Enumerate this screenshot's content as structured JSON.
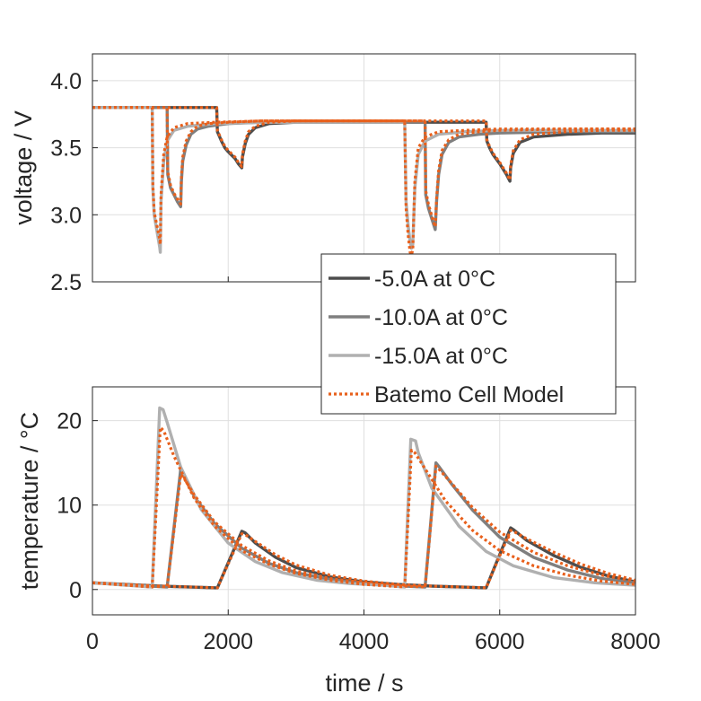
{
  "chart_data": [
    {
      "type": "line",
      "panel": "top",
      "ylabel": "voltage / V",
      "xlim": [
        0,
        8000
      ],
      "ylim": [
        2.5,
        4.2
      ],
      "yticks": [
        2.5,
        3.0,
        3.5,
        4.0
      ],
      "ytick_labels": [
        "2.5",
        "3.0",
        "3.5",
        "4.0"
      ],
      "grid": true,
      "legend": "bottom-right",
      "series": [
        {
          "name": "-5.0A at 0°C",
          "color": "#4d4d4d",
          "style": "solid",
          "x": [
            0,
            1830,
            1840,
            1900,
            1950,
            2000,
            2100,
            2150,
            2200,
            2210,
            2250,
            2300,
            2400,
            2600,
            3000,
            3500,
            4000,
            4500,
            5000,
            5500,
            5800,
            5810,
            5850,
            5900,
            6000,
            6100,
            6150,
            6160,
            6200,
            6300,
            6500,
            7000,
            7500,
            8000
          ],
          "y": [
            3.8,
            3.8,
            3.62,
            3.55,
            3.5,
            3.47,
            3.42,
            3.38,
            3.35,
            3.43,
            3.53,
            3.6,
            3.65,
            3.68,
            3.69,
            3.69,
            3.69,
            3.69,
            3.69,
            3.69,
            3.69,
            3.55,
            3.5,
            3.45,
            3.38,
            3.3,
            3.25,
            3.35,
            3.46,
            3.54,
            3.58,
            3.6,
            3.61,
            3.61
          ]
        },
        {
          "name": "-10.0A at 0°C",
          "color": "#7f7f7f",
          "style": "solid",
          "x": [
            0,
            1100,
            1110,
            1150,
            1200,
            1250,
            1300,
            1310,
            1330,
            1380,
            1450,
            1550,
            1700,
            2000,
            2500,
            3000,
            4000,
            4600,
            4900,
            4910,
            4950,
            5000,
            5050,
            5070,
            5100,
            5150,
            5250,
            5400,
            5700,
            6000,
            7000,
            8000
          ],
          "y": [
            3.8,
            3.8,
            3.3,
            3.2,
            3.15,
            3.1,
            3.06,
            3.25,
            3.4,
            3.52,
            3.6,
            3.64,
            3.66,
            3.68,
            3.69,
            3.69,
            3.69,
            3.69,
            3.69,
            3.15,
            3.05,
            2.97,
            2.89,
            3.1,
            3.3,
            3.45,
            3.54,
            3.58,
            3.6,
            3.61,
            3.62,
            3.62
          ]
        },
        {
          "name": "-15.0A at 0°C",
          "color": "#b0b0b0",
          "style": "solid",
          "x": [
            0,
            880,
            890,
            910,
            950,
            990,
            1000,
            1010,
            1050,
            1100,
            1200,
            1400,
            1800,
            2500,
            4000,
            4600,
            4620,
            4650,
            4680,
            4700,
            4720,
            4750,
            4800,
            4900,
            5100,
            5500,
            6000,
            7000,
            8000
          ],
          "y": [
            3.8,
            3.8,
            3.2,
            3.0,
            2.88,
            2.76,
            2.72,
            3.1,
            3.4,
            3.55,
            3.63,
            3.66,
            3.68,
            3.69,
            3.69,
            3.69,
            3.1,
            2.92,
            2.8,
            2.75,
            2.78,
            3.2,
            3.45,
            3.55,
            3.6,
            3.62,
            3.63,
            3.63,
            3.63
          ]
        },
        {
          "name": "Batemo Cell Model",
          "color": "#e8601c",
          "style": "dotted",
          "x": [
            0,
            880,
            890,
            910,
            950,
            990,
            1000,
            1010,
            1050,
            1100,
            1200,
            1400,
            1800,
            2500,
            4000,
            4600,
            4620,
            4650,
            4680,
            4700,
            4720,
            4750,
            4800,
            4900,
            5100,
            5500,
            6000,
            7000,
            8000
          ],
          "y": [
            3.8,
            3.8,
            3.22,
            3.02,
            2.92,
            2.82,
            2.78,
            3.15,
            3.45,
            3.58,
            3.65,
            3.68,
            3.69,
            3.7,
            3.7,
            3.7,
            3.05,
            2.85,
            2.72,
            2.7,
            2.74,
            3.25,
            3.5,
            3.58,
            3.62,
            3.63,
            3.64,
            3.64,
            3.64
          ]
        },
        {
          "name": "Batemo Cell Model",
          "color": "#e8601c",
          "style": "dotted",
          "x": [
            0,
            1100,
            1110,
            1150,
            1200,
            1250,
            1300,
            1310,
            1330,
            1380,
            1450,
            1550,
            1700,
            2000,
            2500,
            3000,
            4000,
            4600,
            4900,
            4910,
            4950,
            5000,
            5050,
            5070,
            5100,
            5150,
            5250,
            5400,
            5700,
            6000,
            7000,
            8000
          ],
          "y": [
            3.8,
            3.8,
            3.32,
            3.22,
            3.16,
            3.12,
            3.08,
            3.28,
            3.43,
            3.55,
            3.62,
            3.66,
            3.68,
            3.69,
            3.7,
            3.7,
            3.7,
            3.7,
            3.7,
            3.18,
            3.08,
            2.99,
            2.91,
            3.12,
            3.33,
            3.48,
            3.56,
            3.6,
            3.62,
            3.63,
            3.64,
            3.64
          ]
        },
        {
          "name": "Batemo Cell Model",
          "color": "#e8601c",
          "style": "dotted",
          "x": [
            0,
            1830,
            1840,
            1900,
            1950,
            2000,
            2100,
            2150,
            2200,
            2210,
            2250,
            2300,
            2400,
            2600,
            3000,
            3500,
            4000,
            4500,
            5000,
            5500,
            5800,
            5810,
            5850,
            5900,
            6000,
            6100,
            6150,
            6160,
            6200,
            6300,
            6500,
            7000,
            7500,
            8000
          ],
          "y": [
            3.8,
            3.8,
            3.63,
            3.56,
            3.51,
            3.48,
            3.43,
            3.39,
            3.36,
            3.45,
            3.55,
            3.62,
            3.66,
            3.69,
            3.7,
            3.7,
            3.7,
            3.7,
            3.7,
            3.7,
            3.7,
            3.56,
            3.51,
            3.46,
            3.39,
            3.31,
            3.26,
            3.37,
            3.48,
            3.56,
            3.6,
            3.62,
            3.63,
            3.63
          ]
        }
      ]
    },
    {
      "type": "line",
      "panel": "bottom",
      "xlabel": "time / s",
      "ylabel": "temperature / °C",
      "xlim": [
        0,
        8000
      ],
      "ylim": [
        -3,
        24
      ],
      "xticks": [
        0,
        2000,
        4000,
        6000,
        8000
      ],
      "xtick_labels": [
        "0",
        "2000",
        "4000",
        "6000",
        "8000"
      ],
      "yticks": [
        0,
        10,
        20
      ],
      "ytick_labels": [
        "0",
        "10",
        "20"
      ],
      "grid": true,
      "series": [
        {
          "name": "-5.0A at 0°C",
          "color": "#4d4d4d",
          "style": "solid",
          "x": [
            0,
            1000,
            1840,
            2200,
            2250,
            2400,
            2700,
            3000,
            3500,
            4000,
            4500,
            5000,
            5800,
            6160,
            6200,
            6400,
            6800,
            7200,
            7600,
            8000
          ],
          "y": [
            0.8,
            0.4,
            0.2,
            6.9,
            6.7,
            5.5,
            3.8,
            2.6,
            1.5,
            0.9,
            0.6,
            0.4,
            0.2,
            7.3,
            7.1,
            5.8,
            4.0,
            2.6,
            1.6,
            0.9
          ]
        },
        {
          "name": "-10.0A at 0°C",
          "color": "#7f7f7f",
          "style": "solid",
          "x": [
            0,
            1100,
            1300,
            1330,
            1500,
            1800,
            2200,
            2600,
            3000,
            3500,
            4000,
            4600,
            4900,
            5060,
            5100,
            5300,
            5600,
            6000,
            6500,
            7000,
            7500,
            8000
          ],
          "y": [
            0.8,
            0.3,
            14.2,
            13.8,
            11.0,
            7.8,
            4.9,
            3.1,
            2.0,
            1.2,
            0.7,
            0.4,
            0.3,
            15.0,
            14.6,
            12.4,
            9.4,
            6.2,
            3.8,
            2.3,
            1.3,
            0.8
          ]
        },
        {
          "name": "-15.0A at 0°C",
          "color": "#b0b0b0",
          "style": "solid",
          "x": [
            0,
            880,
            990,
            1040,
            1100,
            1300,
            1600,
            2000,
            2400,
            2800,
            3300,
            3800,
            4300,
            4600,
            4690,
            4760,
            4800,
            5000,
            5400,
            5800,
            6200,
            6800,
            7400,
            8000
          ],
          "y": [
            0.8,
            0.3,
            21.5,
            21.3,
            19.8,
            14.5,
            9.5,
            5.5,
            3.3,
            2.0,
            1.1,
            0.7,
            0.5,
            0.3,
            17.8,
            17.6,
            16.2,
            12.0,
            7.5,
            4.5,
            2.8,
            1.4,
            0.8,
            0.5
          ]
        },
        {
          "name": "Batemo Cell Model",
          "color": "#e8601c",
          "style": "dotted",
          "x": [
            0,
            880,
            1000,
            1050,
            1200,
            1500,
            1800,
            2200,
            2600,
            3000,
            3500,
            4000,
            4600,
            4700,
            4750,
            4900,
            5200,
            5600,
            6000,
            6500,
            7000,
            7500,
            8000
          ],
          "y": [
            0.8,
            0.3,
            19.2,
            18.8,
            15.8,
            10.8,
            7.5,
            4.6,
            3.0,
            1.9,
            1.1,
            0.6,
            0.3,
            16.5,
            16.2,
            14.3,
            10.5,
            7.0,
            4.6,
            2.8,
            1.7,
            1.0,
            0.6
          ]
        },
        {
          "name": "Batemo Cell Model",
          "color": "#e8601c",
          "style": "dotted",
          "x": [
            0,
            1100,
            1300,
            1340,
            1500,
            1800,
            2200,
            2600,
            3000,
            3500,
            4000,
            4600,
            4900,
            5060,
            5100,
            5300,
            5600,
            6000,
            6500,
            7000,
            7500,
            8000
          ],
          "y": [
            0.8,
            0.3,
            13.6,
            13.3,
            11.2,
            8.0,
            5.2,
            3.4,
            2.2,
            1.3,
            0.8,
            0.4,
            0.3,
            14.6,
            14.3,
            12.5,
            9.7,
            6.8,
            4.4,
            2.8,
            1.7,
            1.0
          ]
        },
        {
          "name": "Batemo Cell Model",
          "color": "#e8601c",
          "style": "dotted",
          "x": [
            0,
            1000,
            1840,
            2200,
            2250,
            2400,
            2700,
            3000,
            3500,
            4000,
            4500,
            5000,
            5800,
            6160,
            6200,
            6400,
            6800,
            7200,
            7600,
            8000
          ],
          "y": [
            0.8,
            0.4,
            0.2,
            6.6,
            6.5,
            5.7,
            4.1,
            2.9,
            1.7,
            1.0,
            0.6,
            0.4,
            0.2,
            7.0,
            6.9,
            6.0,
            4.4,
            3.0,
            1.9,
            1.1
          ]
        }
      ]
    }
  ],
  "legend": {
    "entries": [
      {
        "label": "-5.0A at 0°C",
        "color": "#4d4d4d",
        "style": "solid"
      },
      {
        "label": "-10.0A at 0°C",
        "color": "#7f7f7f",
        "style": "solid"
      },
      {
        "label": "-15.0A at 0°C",
        "color": "#b0b0b0",
        "style": "solid"
      },
      {
        "label": "Batemo Cell Model",
        "color": "#e8601c",
        "style": "dotted"
      }
    ]
  }
}
